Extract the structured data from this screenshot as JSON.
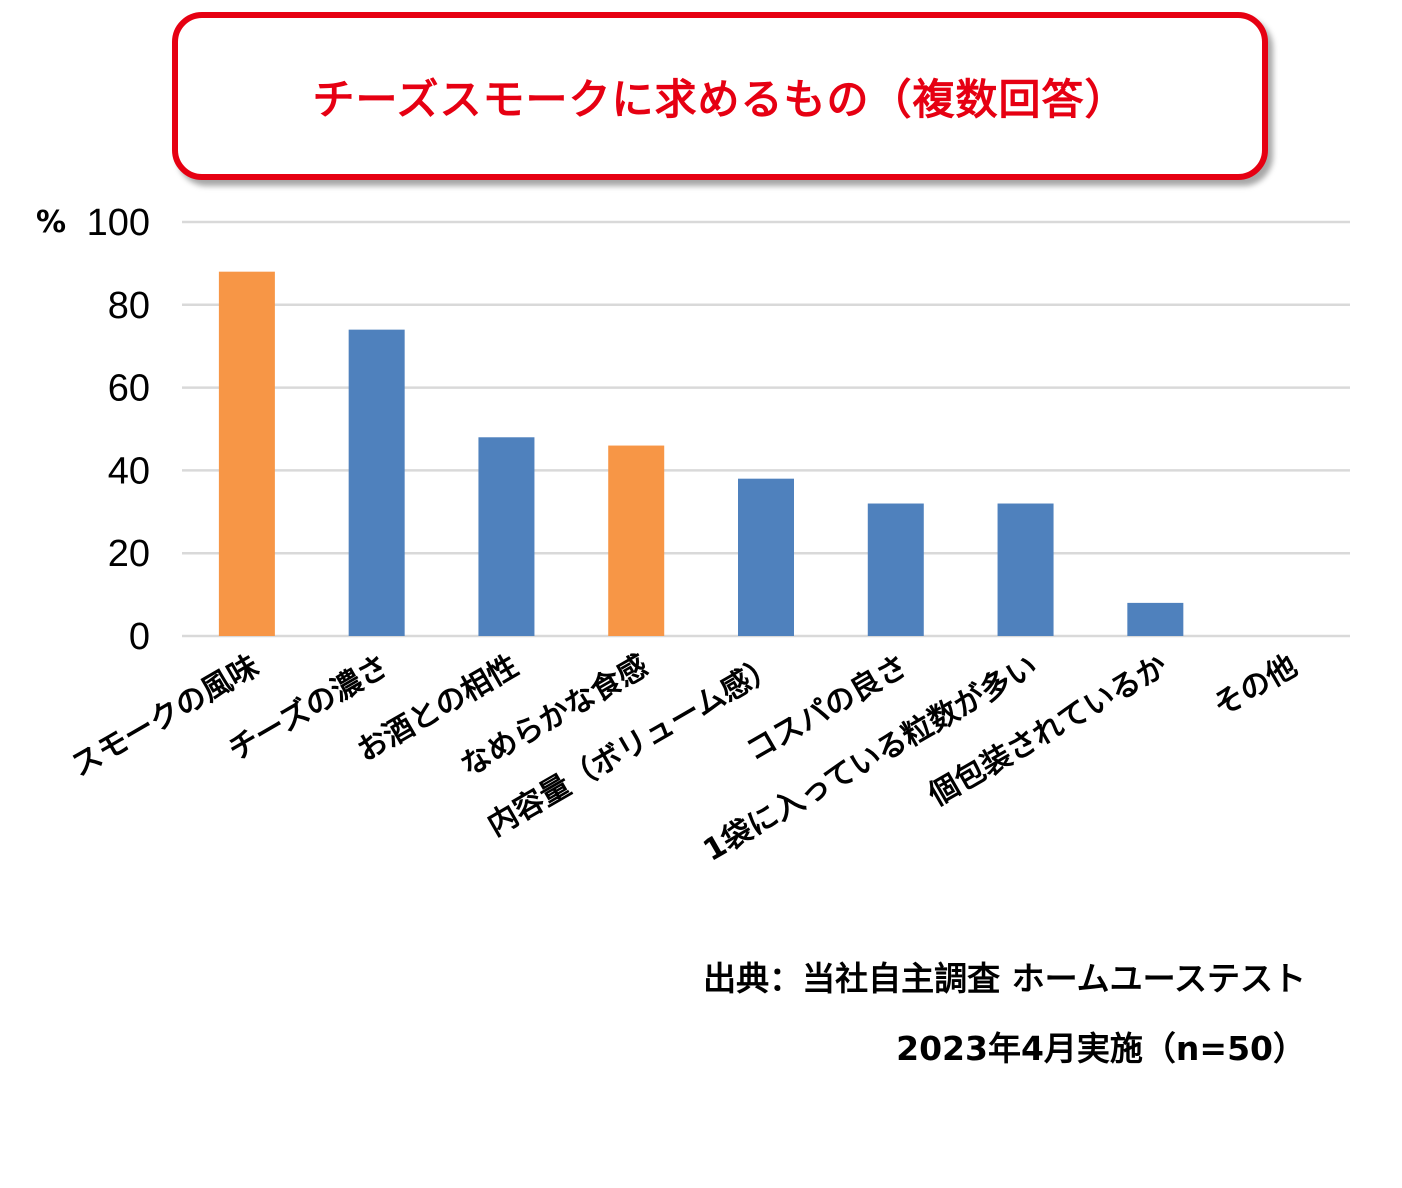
{
  "title": "チーズスモークに求めるもの（複数回答）",
  "chart_data": {
    "type": "bar",
    "categories": [
      "スモークの風味",
      "チーズの濃さ",
      "お酒との相性",
      "なめらかな食感",
      "内容量（ボリューム感）",
      "コスパの良さ",
      "1袋に入っている粒数が多い",
      "個包装されているか",
      "その他"
    ],
    "values": [
      88,
      74,
      48,
      46,
      38,
      32,
      32,
      8,
      0
    ],
    "highlighted": [
      true,
      false,
      false,
      true,
      false,
      false,
      false,
      false,
      false
    ],
    "ylabel": "%",
    "ylim": [
      0,
      100
    ],
    "yticks": [
      0,
      20,
      40,
      60,
      80,
      100
    ],
    "grid": true,
    "colors": {
      "primary": "#4f81bd",
      "highlight": "#f79646",
      "grid": "#d9d9d9"
    }
  },
  "source": {
    "line1": "出典：当社自主調査 ホームユーステスト",
    "line2": "2023年4月実施（n=50）"
  },
  "accent_color": "#e60012"
}
